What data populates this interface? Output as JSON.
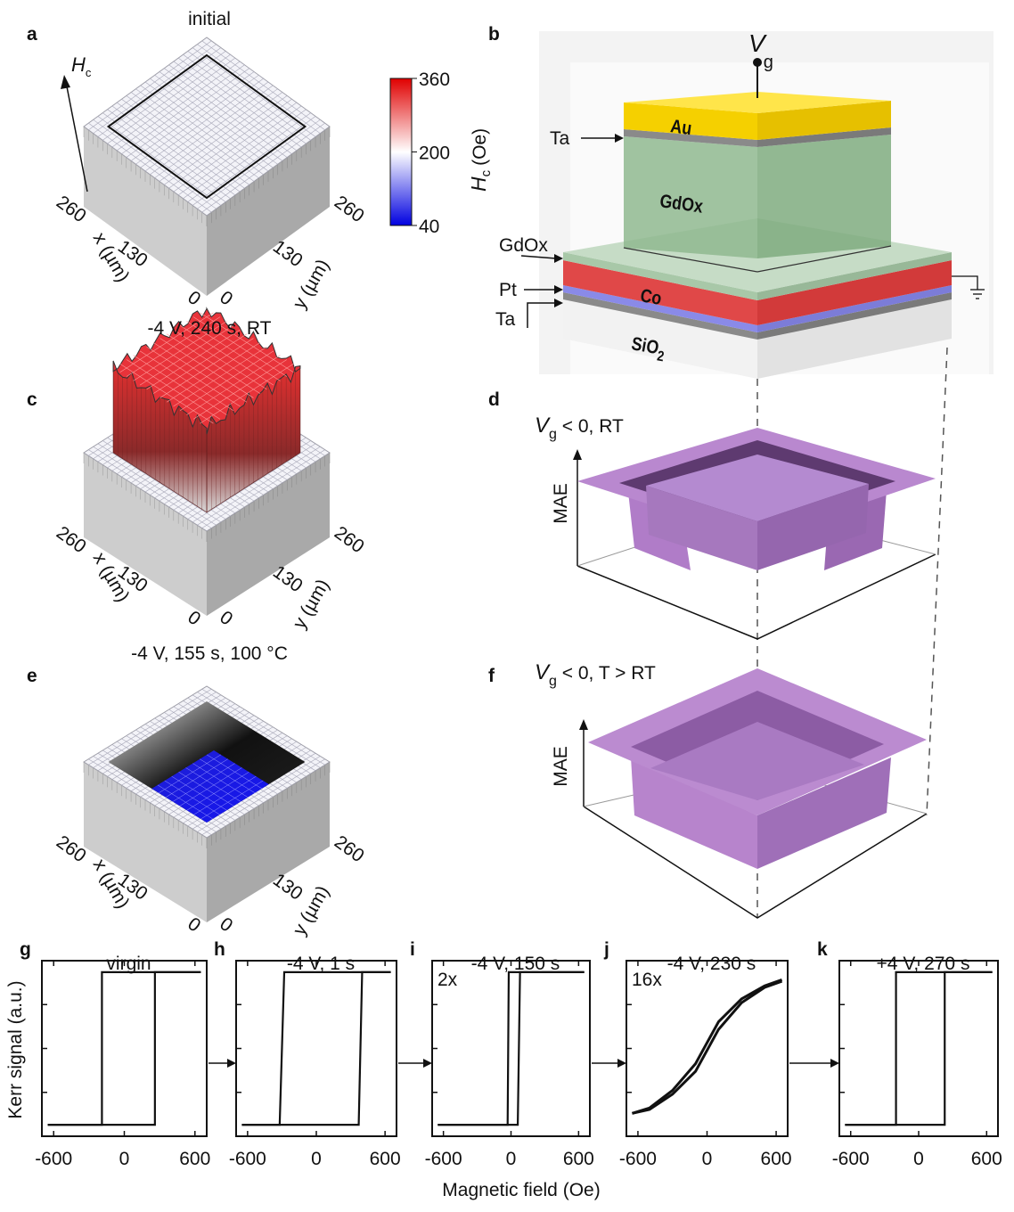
{
  "panels": [
    {
      "label": "a",
      "title": "initial"
    },
    {
      "label": "c",
      "title": "-4 V, 240 s, RT"
    },
    {
      "label": "e",
      "title": "-4 V, 155 s, 100 °C"
    }
  ],
  "surface_axes": {
    "z_label": "H",
    "z_sub": "c",
    "x_label": "x (µm)",
    "y_label": "y (µm)",
    "ticks": [
      260,
      130,
      0
    ]
  },
  "colorbar": {
    "label": "H",
    "sub": "c",
    "unit": "(Oe)",
    "ticks": [
      360,
      200,
      40
    ],
    "range": [
      40,
      360
    ]
  },
  "stack": {
    "label": "b",
    "gate": "V",
    "gate_sub": "g",
    "au": "Au",
    "gdox": "GdOx",
    "co": "Co",
    "sio2": "SiO",
    "sio2_sub": "2",
    "callouts": [
      "Ta",
      "GdOx",
      "Pt",
      "Ta"
    ]
  },
  "mae": [
    {
      "label": "d",
      "var": "V",
      "sub": "g",
      "cond": " < 0, RT",
      "axis": "MAE"
    },
    {
      "label": "f",
      "var": "V",
      "sub": "g",
      "cond": " < 0, T > RT",
      "axis": "MAE"
    }
  ],
  "loops": {
    "y_label": "Kerr signal (a.u.)",
    "x_label": "Magnetic field (Oe)",
    "xlim": [
      -700,
      700
    ],
    "ylim": [
      -1.15,
      1.15
    ],
    "xticks": [
      -600,
      0,
      600
    ],
    "panels": [
      {
        "label": "g",
        "title": "virgin",
        "ascending": {
          "x": [
            -650,
            260,
            260,
            650
          ],
          "y": [
            -1,
            -1,
            1,
            1
          ]
        },
        "descending": {
          "x": [
            650,
            -190,
            -190,
            -650
          ],
          "y": [
            1,
            1,
            -1,
            -1
          ]
        }
      },
      {
        "label": "h",
        "title": "-4 V, 1 s",
        "ascending": {
          "x": [
            -650,
            370,
            400,
            650
          ],
          "y": [
            -1,
            -1,
            1,
            1
          ]
        },
        "descending": {
          "x": [
            650,
            -280,
            -320,
            -650
          ],
          "y": [
            1,
            1,
            -1,
            -1
          ]
        }
      },
      {
        "label": "i",
        "title": "-4 V, 150 s",
        "scale": "2x",
        "ascending": {
          "x": [
            -650,
            60,
            80,
            650
          ],
          "y": [
            -1,
            -1,
            1,
            1
          ]
        },
        "descending": {
          "x": [
            650,
            -20,
            -30,
            -650
          ],
          "y": [
            1,
            1,
            -1,
            -1
          ]
        }
      },
      {
        "label": "j",
        "title": "-4 V, 230 s",
        "scale": "16x",
        "ascending": {
          "x": [
            -650,
            -500,
            -300,
            -100,
            100,
            300,
            500,
            650
          ],
          "y": [
            -0.85,
            -0.8,
            -0.6,
            -0.3,
            0.25,
            0.6,
            0.8,
            0.88
          ]
        },
        "descending": {
          "x": [
            650,
            500,
            300,
            100,
            -100,
            -300,
            -500,
            -650
          ],
          "y": [
            0.9,
            0.82,
            0.65,
            0.35,
            -0.2,
            -0.55,
            -0.78,
            -0.85
          ]
        }
      },
      {
        "label": "k",
        "title": "+4 V, 270 s",
        "ascending": {
          "x": [
            -650,
            230,
            230,
            650
          ],
          "y": [
            -1,
            -1,
            1,
            1
          ]
        },
        "descending": {
          "x": [
            650,
            -200,
            -200,
            -650
          ],
          "y": [
            1,
            1,
            -1,
            -1
          ]
        }
      }
    ]
  }
}
